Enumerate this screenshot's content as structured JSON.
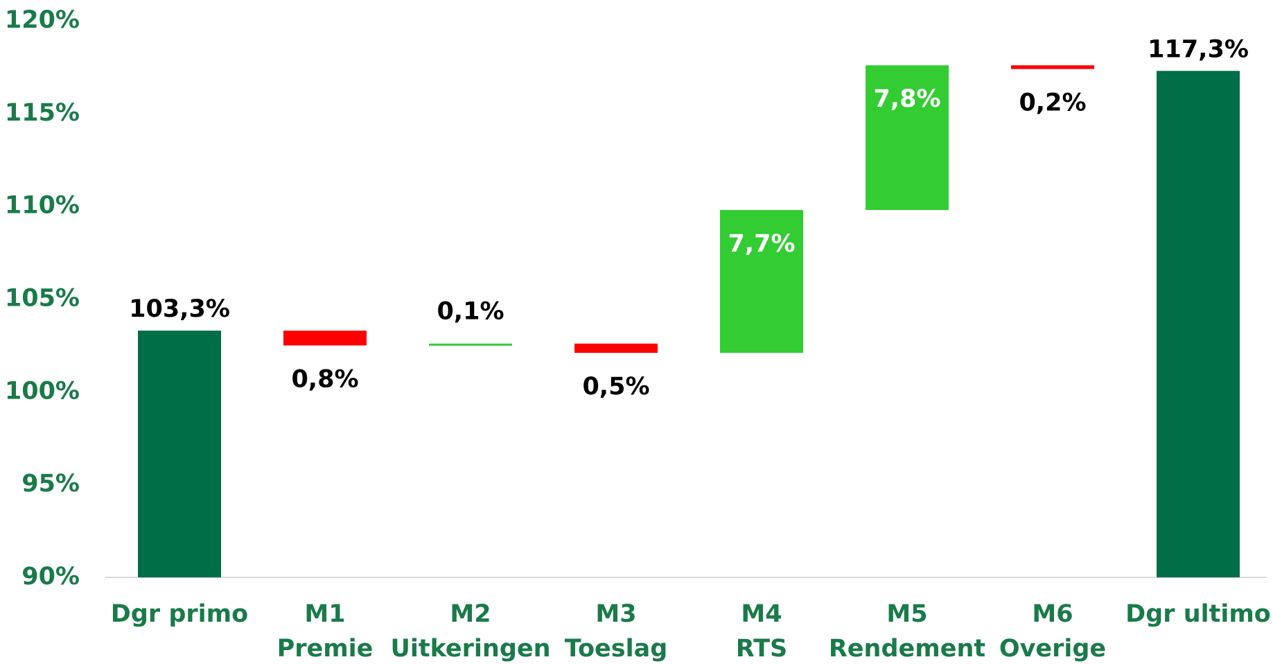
{
  "chart_data": {
    "type": "waterfall",
    "categories": [
      [
        "Dgr primo"
      ],
      [
        "M1",
        "Premie"
      ],
      [
        "M2",
        "Uitkeringen"
      ],
      [
        "M3",
        "Toeslag"
      ],
      [
        "M4",
        "RTS"
      ],
      [
        "M5",
        "Rendement"
      ],
      [
        "M6",
        "Overige"
      ],
      [
        "Dgr ultimo"
      ]
    ],
    "values": [
      103.3,
      -0.8,
      0.1,
      -0.5,
      7.7,
      7.8,
      -0.2,
      117.3
    ],
    "value_labels": [
      "103,3%",
      "0,8%",
      "0,1%",
      "0,5%",
      "7,7%",
      "7,8%",
      "0,2%",
      "117,3%"
    ],
    "is_total": [
      true,
      false,
      false,
      false,
      false,
      false,
      false,
      true
    ],
    "colors": {
      "total": "#006e46",
      "increase": "#33cc33",
      "decrease": "#ff0000"
    },
    "ylim": [
      90,
      120
    ],
    "yticks": [
      {
        "value": 90,
        "label": "90%"
      },
      {
        "value": 95,
        "label": "95%"
      },
      {
        "value": 100,
        "label": "100%"
      },
      {
        "value": 105,
        "label": "105%"
      },
      {
        "value": 110,
        "label": "110%"
      },
      {
        "value": 115,
        "label": "115%"
      },
      {
        "value": 120,
        "label": "120%"
      }
    ],
    "grid": false
  }
}
